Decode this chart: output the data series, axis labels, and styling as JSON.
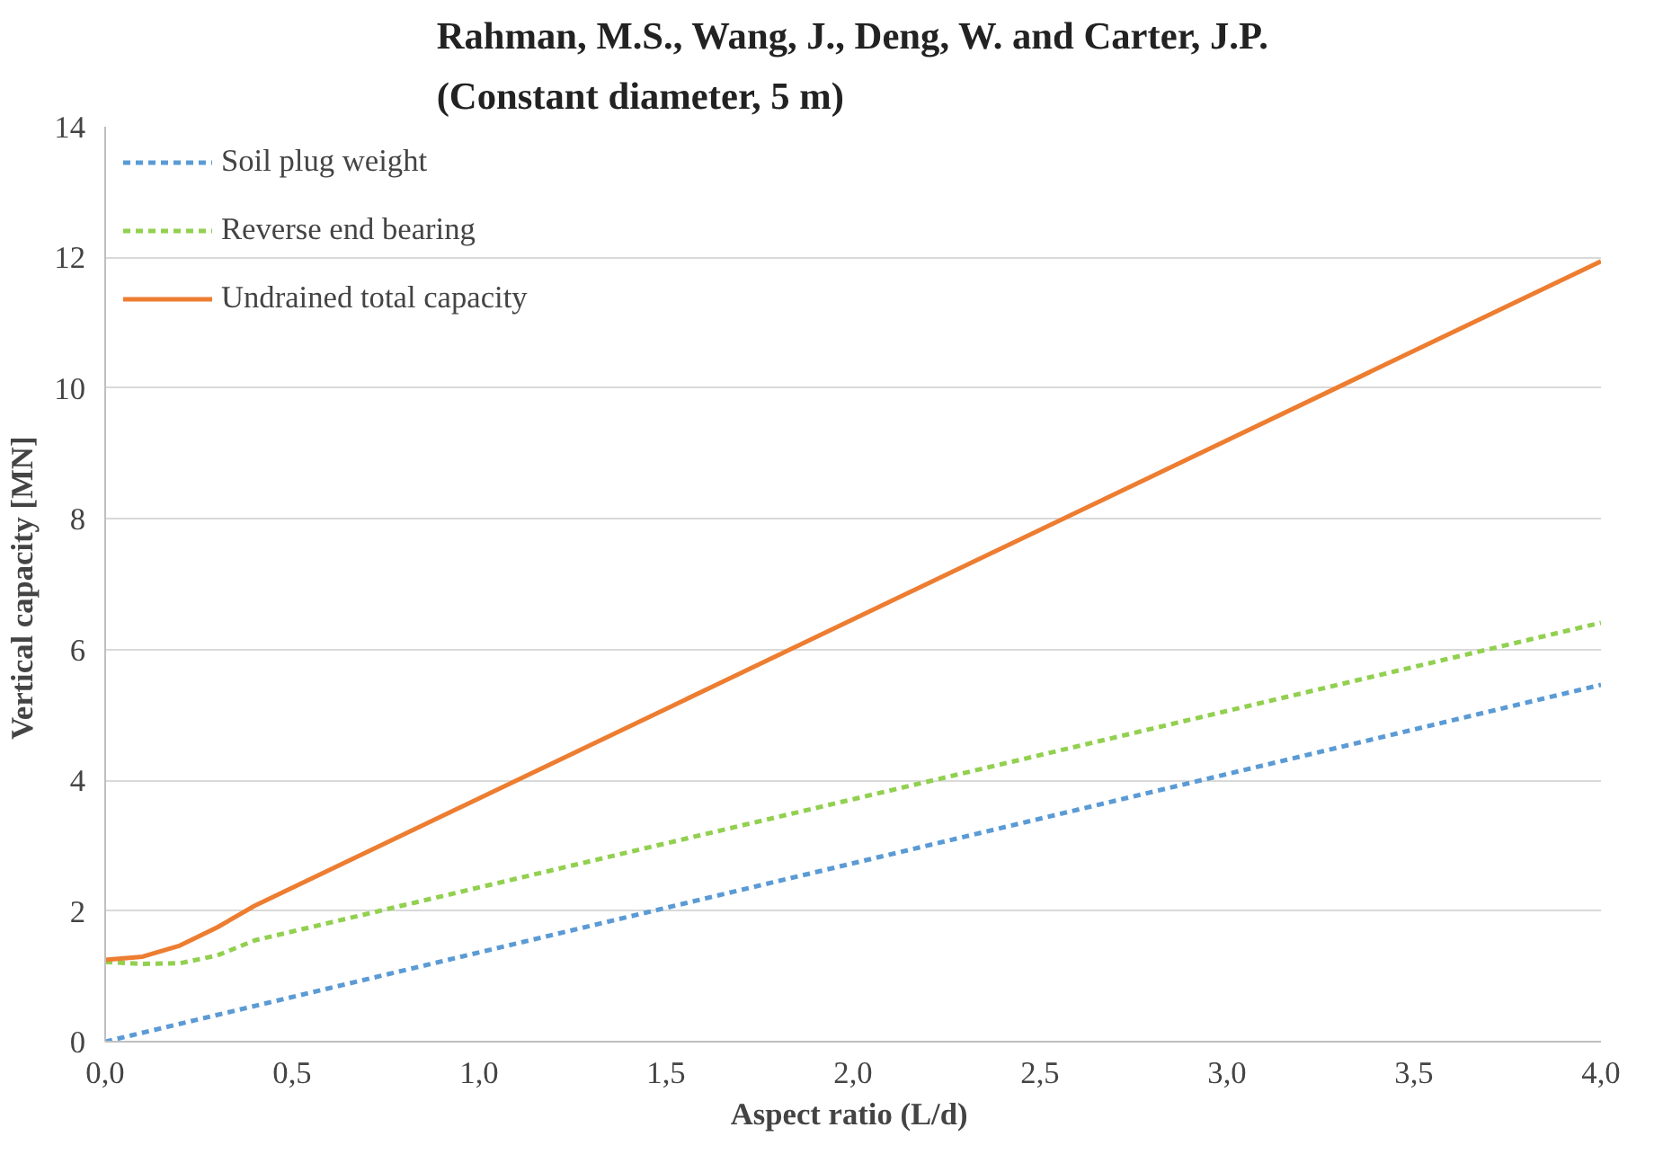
{
  "chart_data": {
    "type": "line",
    "title": "Rahman, M.S., Wang, J., Deng, W. and Carter, J.P.\n(Constant diameter, 5 m)",
    "xlabel": "Aspect ratio  (L/d)",
    "ylabel": "Vertical  capacity [MN]",
    "xlim": [
      0,
      4
    ],
    "ylim": [
      0,
      14
    ],
    "xticks": [
      {
        "value": 0,
        "label": "0,0"
      },
      {
        "value": 0.5,
        "label": "0,5"
      },
      {
        "value": 1,
        "label": "1,0"
      },
      {
        "value": 1.5,
        "label": "1,5"
      },
      {
        "value": 2,
        "label": "2,0"
      },
      {
        "value": 2.5,
        "label": "2,5"
      },
      {
        "value": 3,
        "label": "3,0"
      },
      {
        "value": 3.5,
        "label": "3,5"
      },
      {
        "value": 4,
        "label": "4,0"
      }
    ],
    "yticks": [
      0,
      2,
      4,
      6,
      8,
      10,
      12,
      14
    ],
    "grid": "y",
    "legend": "top left",
    "marker": "none",
    "series": [
      {
        "name": "Soil plug weight",
        "color": "#5b9bd5",
        "line_style": "dashed",
        "x": [
          0,
          4
        ],
        "values": [
          0,
          5.46
        ]
      },
      {
        "name": "Reverse end bearing",
        "color": "#92d050",
        "line_style": "dashed",
        "x": [
          0,
          0.1,
          0.2,
          0.3,
          0.4,
          4
        ],
        "values": [
          1.22,
          1.19,
          1.2,
          1.32,
          1.55,
          6.41
        ]
      },
      {
        "name": "Undrained total capacity",
        "color": "#ed7d31",
        "line_style": "solid",
        "x": [
          0,
          0.1,
          0.2,
          0.3,
          0.4,
          4
        ],
        "values": [
          1.25,
          1.3,
          1.47,
          1.75,
          2.08,
          11.94
        ]
      }
    ]
  }
}
